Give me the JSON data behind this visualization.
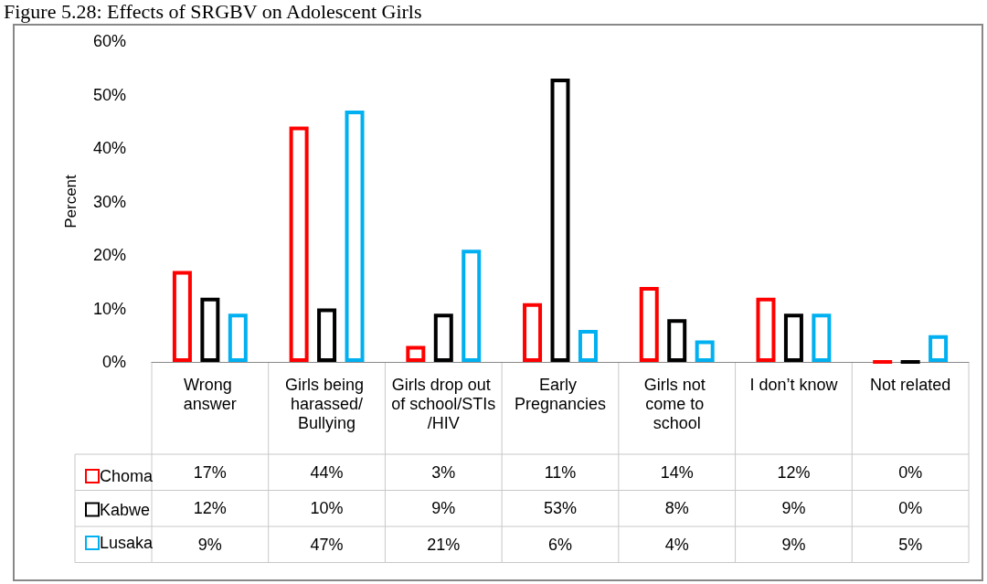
{
  "chart_data": {
    "type": "bar",
    "title": "Figure 5.28: Effects of SRGBV on Adolescent Girls",
    "ylabel": "Percent",
    "categories": [
      "Wrong answer",
      "Girls being harassed/Bullying",
      "Girls drop out of school/STIs/HIV",
      "Early Pregnancies",
      "Girls not come to school",
      "I don’t know",
      "Not related"
    ],
    "series": [
      {
        "name": "Choma",
        "color": "#ff0000",
        "values": [
          17,
          44,
          3,
          11,
          14,
          12,
          0
        ],
        "value_labels": [
          "17%",
          "44%",
          "3%",
          "11%",
          "14%",
          "12%",
          "0%"
        ]
      },
      {
        "name": "Kabwe",
        "color": "#000000",
        "values": [
          12,
          10,
          9,
          53,
          8,
          9,
          0
        ],
        "value_labels": [
          "12%",
          "10%",
          "9%",
          "53%",
          "8%",
          "9%",
          "0%"
        ]
      },
      {
        "name": "Lusaka",
        "color": "#00b0f0",
        "values": [
          9,
          47,
          21,
          6,
          4,
          9,
          5
        ],
        "value_labels": [
          "9%",
          "47%",
          "21%",
          "6%",
          "4%",
          "9%",
          "5%"
        ]
      }
    ],
    "ylim": [
      0,
      60
    ],
    "yticks": [
      {
        "value": 0,
        "label": "0%"
      },
      {
        "value": 10,
        "label": "10%"
      },
      {
        "value": 20,
        "label": "20%"
      },
      {
        "value": 30,
        "label": "30%"
      },
      {
        "value": 40,
        "label": "40%"
      },
      {
        "value": 50,
        "label": "50%"
      },
      {
        "value": 60,
        "label": "60%"
      }
    ],
    "grid": false,
    "legend": "bottom left"
  }
}
